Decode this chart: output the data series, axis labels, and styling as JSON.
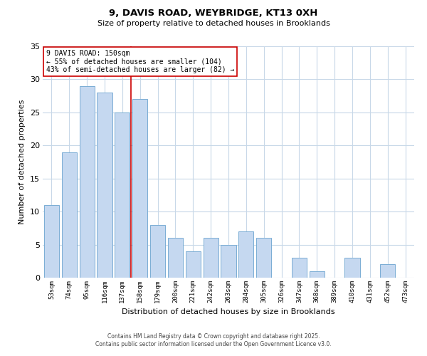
{
  "title": "9, DAVIS ROAD, WEYBRIDGE, KT13 0XH",
  "subtitle": "Size of property relative to detached houses in Brooklands",
  "xlabel": "Distribution of detached houses by size in Brooklands",
  "ylabel": "Number of detached properties",
  "bar_color": "#c5d8f0",
  "bar_edge_color": "#7aadd4",
  "background_color": "#ffffff",
  "grid_color": "#c8d8e8",
  "categories": [
    "53sqm",
    "74sqm",
    "95sqm",
    "116sqm",
    "137sqm",
    "158sqm",
    "179sqm",
    "200sqm",
    "221sqm",
    "242sqm",
    "263sqm",
    "284sqm",
    "305sqm",
    "326sqm",
    "347sqm",
    "368sqm",
    "389sqm",
    "410sqm",
    "431sqm",
    "452sqm",
    "473sqm"
  ],
  "values": [
    11,
    19,
    29,
    28,
    25,
    27,
    8,
    6,
    4,
    6,
    5,
    7,
    6,
    0,
    3,
    1,
    0,
    3,
    0,
    2,
    0
  ],
  "ylim": [
    0,
    35
  ],
  "yticks": [
    0,
    5,
    10,
    15,
    20,
    25,
    30,
    35
  ],
  "vline_x": 4.5,
  "vline_color": "#cc0000",
  "annotation_title": "9 DAVIS ROAD: 150sqm",
  "annotation_line1": "← 55% of detached houses are smaller (104)",
  "annotation_line2": "43% of semi-detached houses are larger (82) →",
  "footer1": "Contains HM Land Registry data © Crown copyright and database right 2025.",
  "footer2": "Contains public sector information licensed under the Open Government Licence v3.0."
}
